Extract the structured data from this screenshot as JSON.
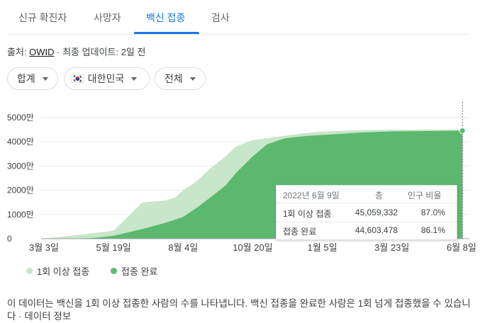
{
  "tabs": [
    {
      "label": "신규 확진자"
    },
    {
      "label": "사망자"
    },
    {
      "label": "백신 접종"
    },
    {
      "label": "검사"
    }
  ],
  "active_tab_index": 2,
  "source": {
    "prefix": "출처: ",
    "link": "OWID",
    "suffix": " · 최종 업데이트: 2일 전"
  },
  "filters": {
    "metric": "합계",
    "country": "대한민국",
    "country_flag": "🇰🇷",
    "range": "전체"
  },
  "chart_data": {
    "type": "area",
    "y_ticks": [
      "5000만",
      "4000만",
      "3000만",
      "2000만",
      "1000만",
      "0"
    ],
    "y_tick_values": [
      50000000,
      40000000,
      30000000,
      20000000,
      10000000,
      0
    ],
    "ylim": [
      0,
      50000000
    ],
    "x_ticks": [
      "3월 3일",
      "5월 19일",
      "8월 4일",
      "10월 20일",
      "1월 5일",
      "3월 23일",
      "6월 8일"
    ],
    "x_tick_dates": [
      "2021-03-03",
      "2021-05-19",
      "2021-08-04",
      "2021-10-20",
      "2022-01-05",
      "2022-03-23",
      "2022-06-08"
    ],
    "series": [
      {
        "name": "1회 이상 접종",
        "color": "#c8e6c9",
        "points": [
          [
            "2021-02-26",
            0
          ],
          [
            "2021-03-20",
            700000
          ],
          [
            "2021-04-20",
            2000000
          ],
          [
            "2021-05-19",
            3300000
          ],
          [
            "2021-06-05",
            9500000
          ],
          [
            "2021-06-20",
            15000000
          ],
          [
            "2021-07-15",
            15700000
          ],
          [
            "2021-07-26",
            17000000
          ],
          [
            "2021-08-04",
            20000000
          ],
          [
            "2021-08-20",
            24000000
          ],
          [
            "2021-09-03",
            29000000
          ],
          [
            "2021-09-20",
            34000000
          ],
          [
            "2021-10-01",
            38000000
          ],
          [
            "2021-10-20",
            40700000
          ],
          [
            "2021-11-15",
            42000000
          ],
          [
            "2021-12-15",
            43500000
          ],
          [
            "2022-01-05",
            44200000
          ],
          [
            "2022-02-15",
            44800000
          ],
          [
            "2022-03-23",
            45000000
          ],
          [
            "2022-06-09",
            45059332
          ]
        ]
      },
      {
        "name": "접종 완료",
        "color": "#5cb86f",
        "points": [
          [
            "2021-02-26",
            0
          ],
          [
            "2021-04-05",
            0
          ],
          [
            "2021-04-30",
            400000
          ],
          [
            "2021-05-19",
            1200000
          ],
          [
            "2021-06-20",
            4000000
          ],
          [
            "2021-07-15",
            6500000
          ],
          [
            "2021-08-04",
            9000000
          ],
          [
            "2021-08-20",
            13000000
          ],
          [
            "2021-09-03",
            17000000
          ],
          [
            "2021-09-20",
            22000000
          ],
          [
            "2021-10-01",
            27000000
          ],
          [
            "2021-10-20",
            34000000
          ],
          [
            "2021-11-05",
            39000000
          ],
          [
            "2021-11-25",
            41500000
          ],
          [
            "2021-12-20",
            42500000
          ],
          [
            "2022-01-05",
            42800000
          ],
          [
            "2022-02-15",
            43800000
          ],
          [
            "2022-03-23",
            44300000
          ],
          [
            "2022-06-09",
            44603478
          ]
        ]
      }
    ]
  },
  "tooltip": {
    "date": "2022년 6월 9일",
    "col_total": "총",
    "col_ratio": "인구 비율",
    "rows": [
      {
        "label": "1회 이상 접종",
        "total": "45,059,332",
        "ratio": "87.0%"
      },
      {
        "label": "접종 완료",
        "total": "44,603,478",
        "ratio": "86.1%"
      }
    ]
  },
  "legend": [
    {
      "label": "1회 이상 접종",
      "color": "#c8e6c9"
    },
    {
      "label": "접종 완료",
      "color": "#5cb86f"
    }
  ],
  "footer": {
    "text": "이 데이터는 백신을 1회 이상 접종한 사람의 수를 나타냅니다. 백신 접종을 완료한 사람은 1회 넘게 접종했을 수 있습니다 · ",
    "link": "데이터 정보"
  }
}
